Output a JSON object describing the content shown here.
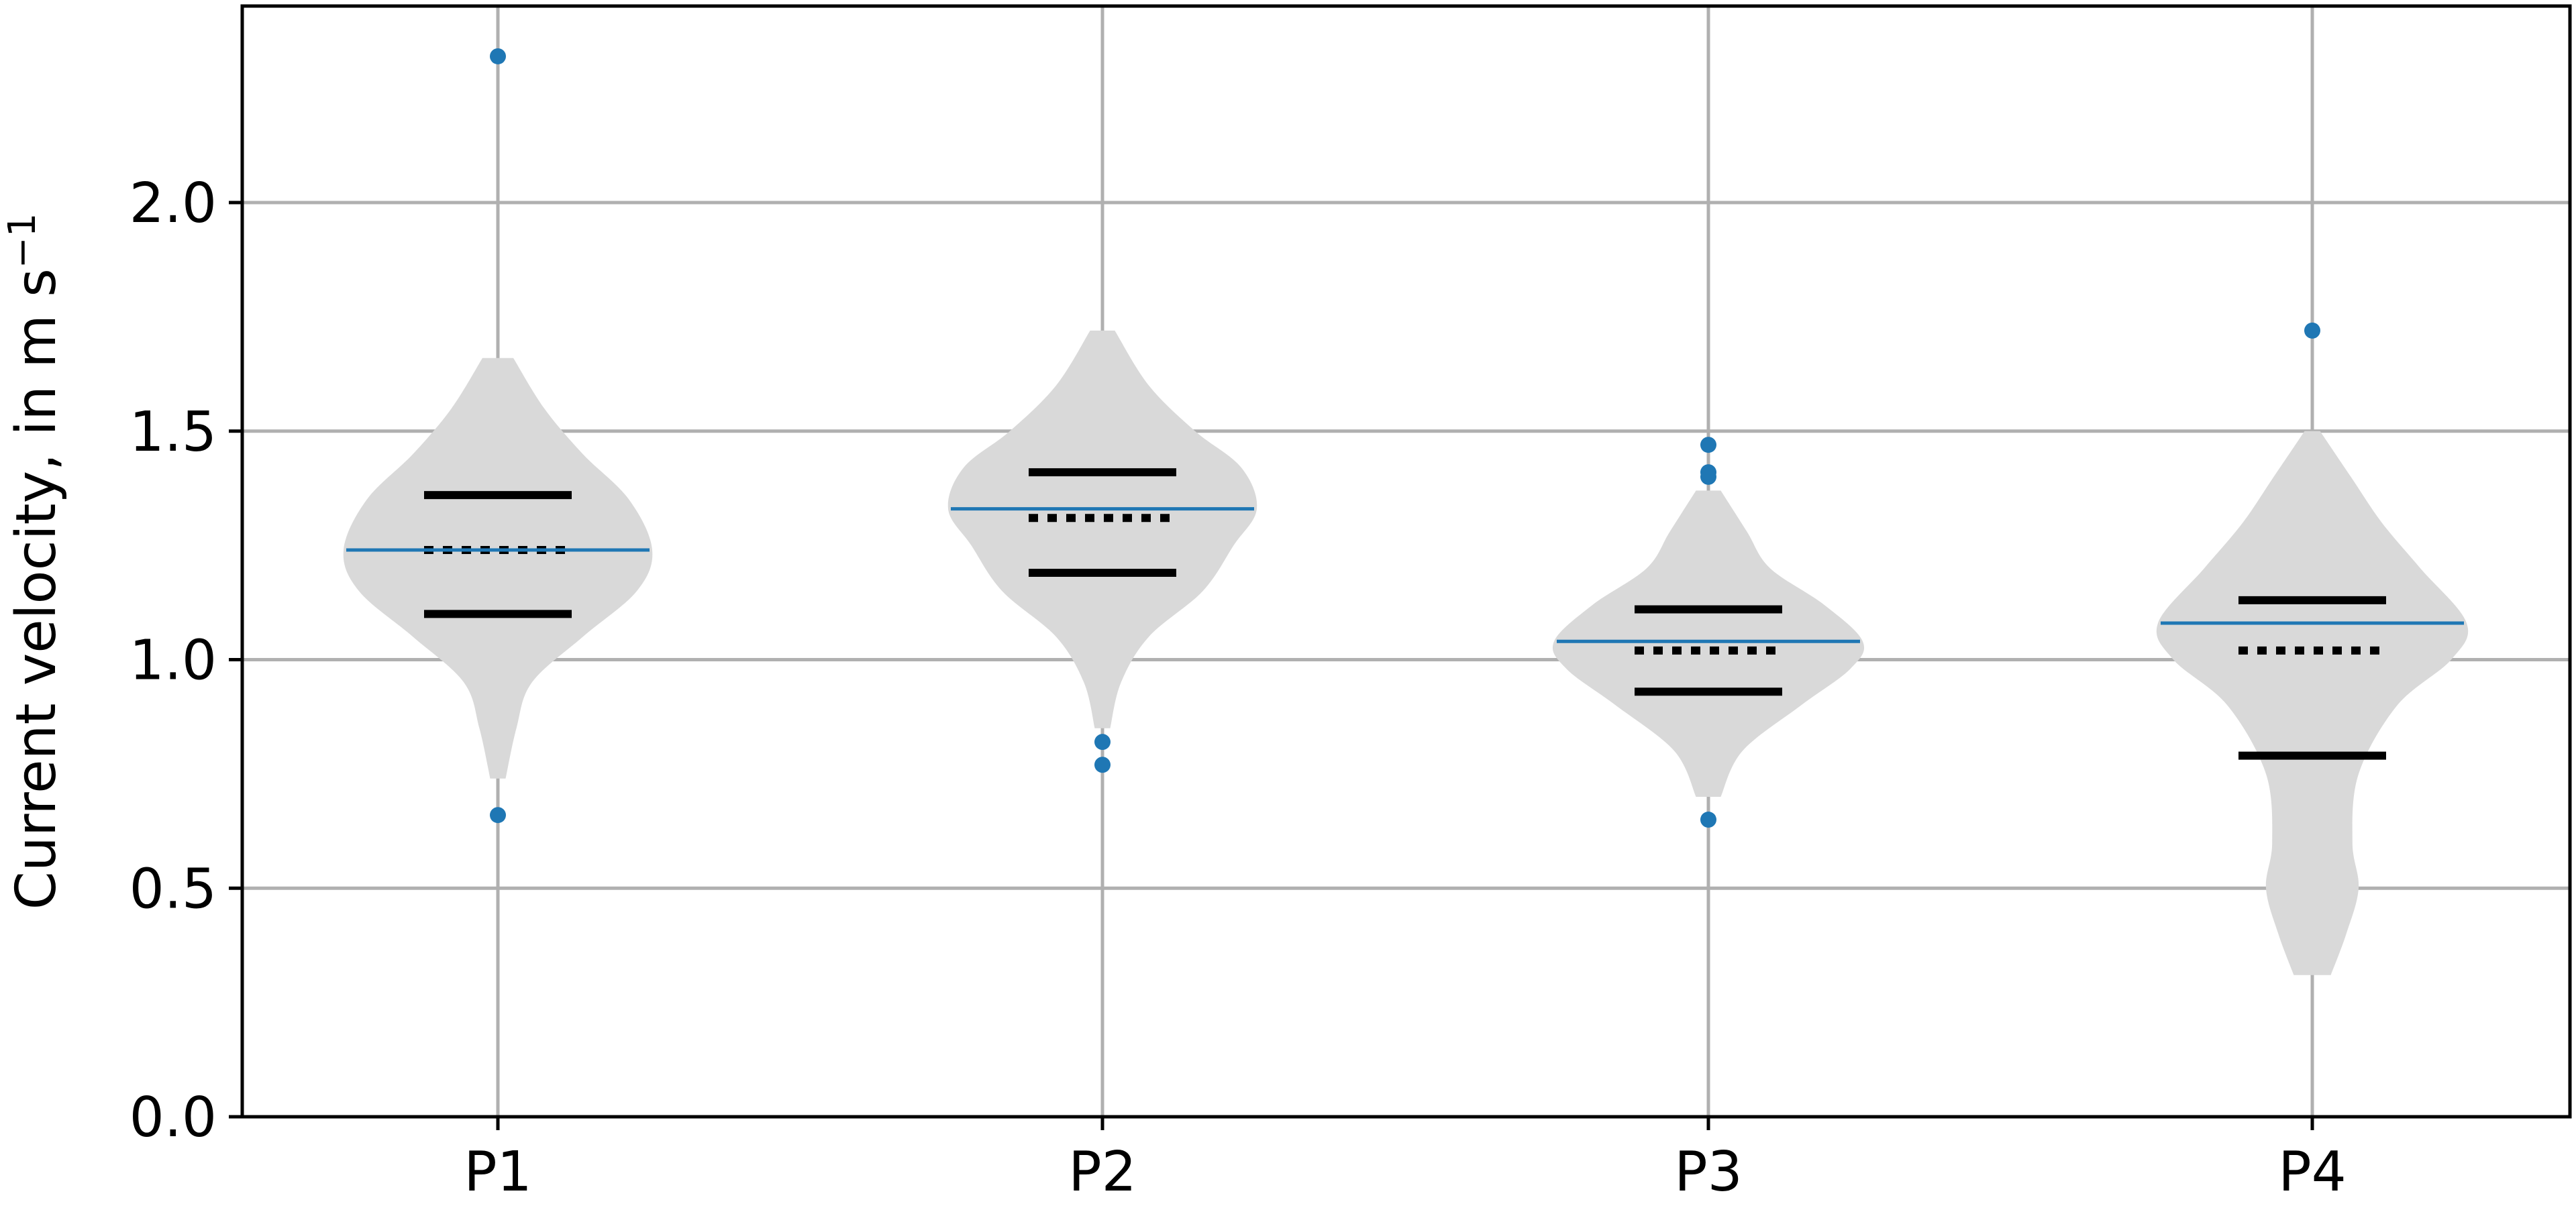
{
  "chart_data": {
    "type": "violin",
    "title": "",
    "xlabel": "",
    "ylabel": "Current velocity, in m s",
    "ylabel_superscript": "−1",
    "categories": [
      "P1",
      "P2",
      "P3",
      "P4"
    ],
    "ylim": [
      0,
      2.43
    ],
    "yticks": [
      0.0,
      0.5,
      1.0,
      1.5,
      2.0
    ],
    "ytick_labels": [
      "0.0",
      "0.5",
      "1.0",
      "1.5",
      "2.0"
    ],
    "grid": true,
    "violins": [
      {
        "name": "P1",
        "min": 0.74,
        "max": 1.66,
        "q1": 1.1,
        "median": 1.24,
        "q3": 1.36,
        "mean": 1.24,
        "outliers": [
          2.32,
          0.66
        ],
        "profile": [
          [
            0.74,
            0.05
          ],
          [
            0.85,
            0.12
          ],
          [
            0.95,
            0.22
          ],
          [
            1.05,
            0.55
          ],
          [
            1.15,
            0.9
          ],
          [
            1.24,
            1.0
          ],
          [
            1.35,
            0.85
          ],
          [
            1.45,
            0.55
          ],
          [
            1.55,
            0.3
          ],
          [
            1.66,
            0.1
          ]
        ]
      },
      {
        "name": "P2",
        "min": 0.85,
        "max": 1.72,
        "q1": 1.19,
        "median": 1.31,
        "q3": 1.41,
        "mean": 1.33,
        "outliers": [
          0.82,
          0.77
        ],
        "profile": [
          [
            0.85,
            0.05
          ],
          [
            0.95,
            0.12
          ],
          [
            1.05,
            0.3
          ],
          [
            1.15,
            0.65
          ],
          [
            1.25,
            0.85
          ],
          [
            1.33,
            1.0
          ],
          [
            1.42,
            0.9
          ],
          [
            1.5,
            0.6
          ],
          [
            1.6,
            0.3
          ],
          [
            1.72,
            0.08
          ]
        ]
      },
      {
        "name": "P3",
        "min": 0.7,
        "max": 1.37,
        "q1": 0.93,
        "median": 1.02,
        "q3": 1.11,
        "mean": 1.04,
        "outliers": [
          1.47,
          1.4,
          1.41,
          0.65
        ],
        "profile": [
          [
            0.7,
            0.08
          ],
          [
            0.8,
            0.22
          ],
          [
            0.9,
            0.6
          ],
          [
            0.98,
            0.92
          ],
          [
            1.04,
            1.0
          ],
          [
            1.12,
            0.75
          ],
          [
            1.2,
            0.4
          ],
          [
            1.28,
            0.25
          ],
          [
            1.37,
            0.08
          ]
        ]
      },
      {
        "name": "P4",
        "min": 0.31,
        "max": 1.5,
        "q1": 0.79,
        "median": 1.02,
        "q3": 1.13,
        "mean": 1.08,
        "outliers": [
          1.72
        ],
        "profile": [
          [
            0.31,
            0.12
          ],
          [
            0.4,
            0.22
          ],
          [
            0.5,
            0.3
          ],
          [
            0.6,
            0.26
          ],
          [
            0.75,
            0.3
          ],
          [
            0.9,
            0.55
          ],
          [
            1.0,
            0.9
          ],
          [
            1.08,
            1.0
          ],
          [
            1.2,
            0.7
          ],
          [
            1.3,
            0.45
          ],
          [
            1.4,
            0.25
          ],
          [
            1.5,
            0.05
          ]
        ]
      }
    ],
    "colors": {
      "violin_fill": "#d9d9d9",
      "quartile_line": "#000000",
      "mean_line": "#1f77b4",
      "outlier": "#1f77b4",
      "grid": "#b0b0b0",
      "axes": "#000000"
    }
  }
}
